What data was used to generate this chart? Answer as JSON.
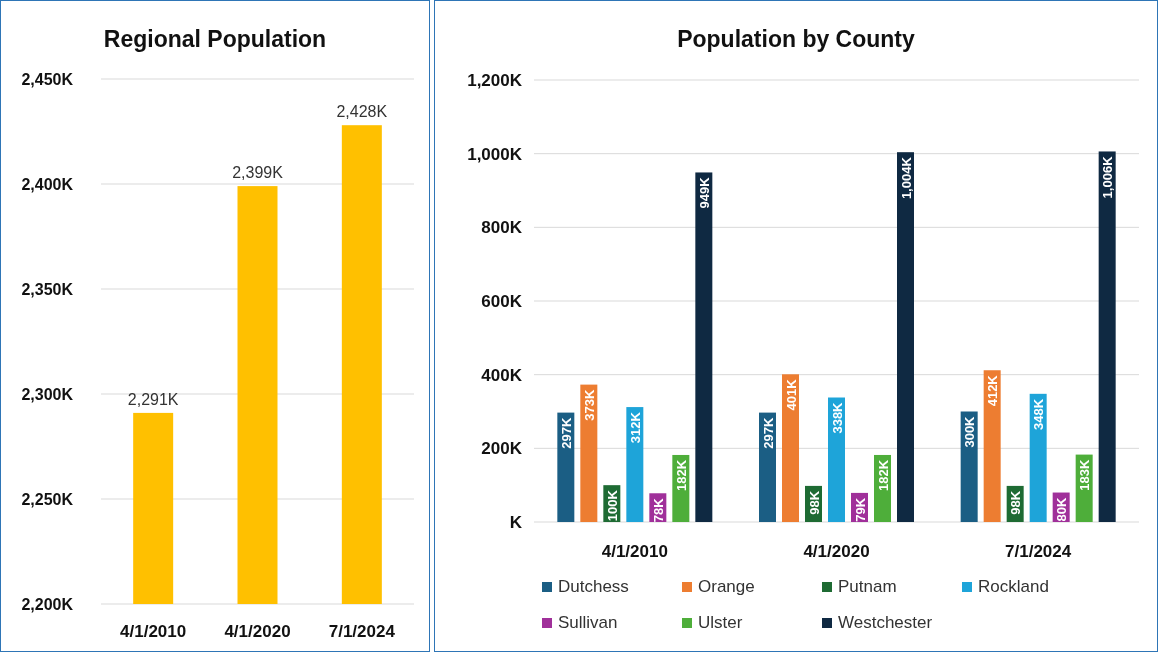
{
  "chart_data": [
    {
      "type": "bar",
      "title": "Regional Population",
      "categories": [
        "4/1/2010",
        "4/1/2020",
        "7/1/2024"
      ],
      "values": [
        2291,
        2399,
        2428
      ],
      "color": "#ffc000",
      "value_labels": [
        "2,291K",
        "2,399K",
        "2,428K"
      ],
      "ylim": [
        2200,
        2450
      ],
      "yticks": [
        {
          "value": 2200,
          "label": "2,200K"
        },
        {
          "value": 2250,
          "label": "2,250K"
        },
        {
          "value": 2300,
          "label": "2,300K"
        },
        {
          "value": 2350,
          "label": "2,350K"
        },
        {
          "value": 2400,
          "label": "2,400K"
        },
        {
          "value": 2450,
          "label": "2,450K"
        }
      ],
      "grid": "y"
    },
    {
      "type": "bar",
      "title": "Population by County",
      "categories": [
        "4/1/2010",
        "4/1/2020",
        "7/1/2024"
      ],
      "series": [
        {
          "name": "Dutchess",
          "color": "#1b5e84",
          "values": [
            297,
            297,
            300
          ],
          "value_labels": [
            "297K",
            "297K",
            "300K"
          ]
        },
        {
          "name": "Orange",
          "color": "#ed7d31",
          "values": [
            373,
            401,
            412
          ],
          "value_labels": [
            "373K",
            "401K",
            "412K"
          ]
        },
        {
          "name": "Putnam",
          "color": "#1e6b33",
          "values": [
            100,
            98,
            98
          ],
          "value_labels": [
            "100K",
            "98K",
            "98K"
          ]
        },
        {
          "name": "Rockland",
          "color": "#1ea4d9",
          "values": [
            312,
            338,
            348
          ],
          "value_labels": [
            "312K",
            "338K",
            "348K"
          ]
        },
        {
          "name": "Sullivan",
          "color": "#a0309a",
          "values": [
            78,
            79,
            80
          ],
          "value_labels": [
            "78K",
            "79K",
            "80K"
          ]
        },
        {
          "name": "Ulster",
          "color": "#4eae3a",
          "values": [
            182,
            182,
            183
          ],
          "value_labels": [
            "182K",
            "182K",
            "183K"
          ]
        },
        {
          "name": "Westchester",
          "color": "#0f2942",
          "values": [
            949,
            1004,
            1006
          ],
          "value_labels": [
            "949K",
            "1,004K",
            "1,006K"
          ]
        }
      ],
      "ylim": [
        0,
        1200
      ],
      "yticks": [
        {
          "value": 0,
          "label": "K"
        },
        {
          "value": 200,
          "label": "200K"
        },
        {
          "value": 400,
          "label": "400K"
        },
        {
          "value": 600,
          "label": "600K"
        },
        {
          "value": 800,
          "label": "800K"
        },
        {
          "value": 1000,
          "label": "1,000K"
        },
        {
          "value": 1200,
          "label": "1,200K"
        }
      ],
      "grid": "y",
      "legend": "bottom"
    }
  ]
}
